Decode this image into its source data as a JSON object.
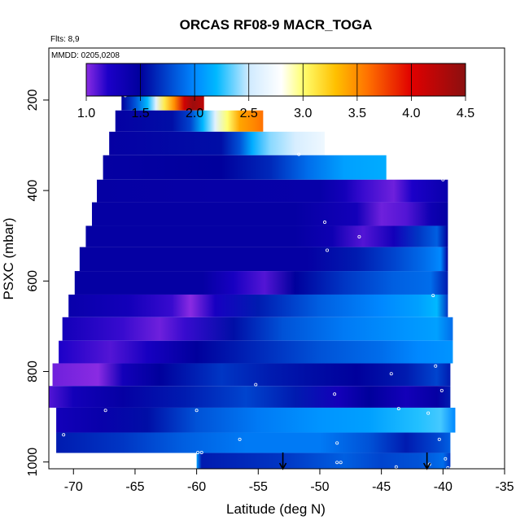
{
  "chart_data": {
    "type": "heatmap",
    "title": "ORCAS RF08-9 MACR_TOGA",
    "flights_label": "Flts: 8,9",
    "dates_label": "MMDD: 0205,0208",
    "xlabel": "Latitude (deg N)",
    "ylabel": "PSXC (mbar)",
    "xlim": [
      -72,
      -35
    ],
    "ylim": [
      1015,
      85
    ],
    "x_ticks": [
      -70,
      -65,
      -60,
      -55,
      -50,
      -45,
      -40,
      -35
    ],
    "y_ticks": [
      200,
      400,
      600,
      800,
      1000
    ],
    "colorbar": {
      "range": [
        1.0,
        4.5
      ],
      "ticks": [
        1.0,
        1.5,
        2.0,
        2.5,
        3.0,
        3.5,
        4.0,
        4.5
      ],
      "tick_labels": [
        "1.0",
        "1.5",
        "2.0",
        "2.5",
        "3.0",
        "3.5",
        "4.0",
        "4.5"
      ],
      "stops": [
        {
          "value": 1.0,
          "color": "#8a2be2"
        },
        {
          "value": 1.2,
          "color": "#1c00c8"
        },
        {
          "value": 1.5,
          "color": "#00009c"
        },
        {
          "value": 2.0,
          "color": "#0088ff"
        },
        {
          "value": 2.2,
          "color": "#00b8ff"
        },
        {
          "value": 2.5,
          "color": "#cfeaff"
        },
        {
          "value": 2.8,
          "color": "#ffffff"
        },
        {
          "value": 3.0,
          "color": "#ffff70"
        },
        {
          "value": 3.3,
          "color": "#ffc000"
        },
        {
          "value": 3.6,
          "color": "#ff7000"
        },
        {
          "value": 4.0,
          "color": "#e00000"
        },
        {
          "value": 4.5,
          "color": "#8b1010"
        }
      ]
    },
    "bands": [
      {
        "p_top": 177,
        "p_bot": 223,
        "lat_start": -66.1,
        "lat_end": -59.4,
        "knots": [
          [
            -66.1,
            1.5
          ],
          [
            -65,
            1.8
          ],
          [
            -64,
            2.2
          ],
          [
            -63.3,
            2.6
          ],
          [
            -62.6,
            3.1
          ],
          [
            -61.8,
            3.5
          ],
          [
            -61.0,
            4.1
          ],
          [
            -60.3,
            4.4
          ],
          [
            -59.4,
            4.2
          ]
        ]
      },
      {
        "p_top": 223,
        "p_bot": 270,
        "lat_start": -66.6,
        "lat_end": -54.6,
        "knots": [
          [
            -66.6,
            1.45
          ],
          [
            -62,
            1.55
          ],
          [
            -60.5,
            1.75
          ],
          [
            -59.5,
            2.2
          ],
          [
            -58.5,
            2.6
          ],
          [
            -57.5,
            3.0
          ],
          [
            -56.5,
            3.4
          ],
          [
            -55.5,
            3.5
          ],
          [
            -54.6,
            3.6
          ]
        ]
      },
      {
        "p_top": 270,
        "p_bot": 322,
        "lat_start": -67.1,
        "lat_end": -49.6,
        "knots": [
          [
            -67.1,
            1.45
          ],
          [
            -58,
            1.55
          ],
          [
            -56.5,
            1.8
          ],
          [
            -55.5,
            2.15
          ],
          [
            -54,
            2.4
          ],
          [
            -52,
            2.55
          ],
          [
            -49.6,
            2.7
          ]
        ]
      },
      {
        "p_top": 322,
        "p_bot": 376,
        "lat_start": -67.6,
        "lat_end": -44.6,
        "knots": [
          [
            -67.6,
            1.45
          ],
          [
            -58,
            1.5
          ],
          [
            -54,
            1.65
          ],
          [
            -51,
            1.9
          ],
          [
            -48,
            2.1
          ],
          [
            -44.6,
            2.15
          ]
        ]
      },
      {
        "p_top": 376,
        "p_bot": 426,
        "lat_start": -68.1,
        "lat_end": -39.6,
        "knots": [
          [
            -68.1,
            1.45
          ],
          [
            -50,
            1.42
          ],
          [
            -48,
            1.3
          ],
          [
            -46.5,
            1.15
          ],
          [
            -44,
            1.05
          ],
          [
            -42.5,
            1.2
          ],
          [
            -39.6,
            1.4
          ]
        ]
      },
      {
        "p_top": 426,
        "p_bot": 478,
        "lat_start": -68.5,
        "lat_end": -39.6,
        "knots": [
          [
            -68.5,
            1.45
          ],
          [
            -52,
            1.45
          ],
          [
            -47,
            1.3
          ],
          [
            -45,
            1.05
          ],
          [
            -43,
            1.1
          ],
          [
            -41,
            1.35
          ],
          [
            -39.6,
            1.45
          ]
        ]
      },
      {
        "p_top": 478,
        "p_bot": 525,
        "lat_start": -69.0,
        "lat_end": -39.6,
        "knots": [
          [
            -69.0,
            1.45
          ],
          [
            -52,
            1.45
          ],
          [
            -49,
            1.35
          ],
          [
            -46.5,
            1.1
          ],
          [
            -44,
            1.3
          ],
          [
            -42,
            1.7
          ],
          [
            -40.5,
            1.85
          ],
          [
            -39.6,
            1.5
          ]
        ]
      },
      {
        "p_top": 525,
        "p_bot": 578,
        "lat_start": -69.5,
        "lat_end": -39.6,
        "knots": [
          [
            -69.5,
            1.45
          ],
          [
            -51,
            1.45
          ],
          [
            -47,
            1.6
          ],
          [
            -44,
            1.75
          ],
          [
            -41.5,
            1.9
          ],
          [
            -40.2,
            2.0
          ],
          [
            -39.6,
            1.5
          ]
        ]
      },
      {
        "p_top": 578,
        "p_bot": 630,
        "lat_start": -69.9,
        "lat_end": -39.6,
        "knots": [
          [
            -69.9,
            1.45
          ],
          [
            -59.5,
            1.45
          ],
          [
            -57,
            1.25
          ],
          [
            -54.5,
            1.1
          ],
          [
            -52,
            1.5
          ],
          [
            -48,
            1.7
          ],
          [
            -44,
            1.85
          ],
          [
            -41,
            1.9
          ],
          [
            -39.6,
            1.6
          ]
        ]
      },
      {
        "p_top": 630,
        "p_bot": 680,
        "lat_start": -70.4,
        "lat_end": -39.6,
        "knots": [
          [
            -70.4,
            1.4
          ],
          [
            -65.5,
            1.3
          ],
          [
            -62,
            1.15
          ],
          [
            -60.5,
            1.0
          ],
          [
            -58.5,
            1.25
          ],
          [
            -55,
            1.6
          ],
          [
            -50,
            1.85
          ],
          [
            -45,
            2.0
          ],
          [
            -42,
            2.1
          ],
          [
            -40.5,
            2.2
          ],
          [
            -39.6,
            1.7
          ]
        ]
      },
      {
        "p_top": 680,
        "p_bot": 732,
        "lat_start": -70.9,
        "lat_end": -39.2,
        "knots": [
          [
            -70.9,
            1.3
          ],
          [
            -66,
            1.15
          ],
          [
            -63,
            1.05
          ],
          [
            -61,
            1.15
          ],
          [
            -57,
            1.55
          ],
          [
            -53,
            1.8
          ],
          [
            -48,
            1.95
          ],
          [
            -43,
            2.05
          ],
          [
            -40.5,
            2.1
          ],
          [
            -39.2,
            1.9
          ]
        ]
      },
      {
        "p_top": 732,
        "p_bot": 782,
        "lat_start": -71.2,
        "lat_end": -39.2,
        "knots": [
          [
            -71.2,
            1.2
          ],
          [
            -67,
            1.1
          ],
          [
            -64,
            1.25
          ],
          [
            -60,
            1.5
          ],
          [
            -55,
            1.65
          ],
          [
            -50,
            1.8
          ],
          [
            -45,
            1.9
          ],
          [
            -42,
            2.0
          ],
          [
            -39.2,
            2.05
          ]
        ]
      },
      {
        "p_top": 782,
        "p_bot": 832,
        "lat_start": -71.7,
        "lat_end": -39.4,
        "knots": [
          [
            -71.7,
            1.05
          ],
          [
            -68,
            1.0
          ],
          [
            -66,
            1.3
          ],
          [
            -63,
            1.5
          ],
          [
            -58,
            1.7
          ],
          [
            -54,
            1.6
          ],
          [
            -51,
            1.55
          ],
          [
            -47,
            1.5
          ],
          [
            -43,
            1.6
          ],
          [
            -40.5,
            1.75
          ],
          [
            -39.4,
            1.6
          ]
        ]
      },
      {
        "p_top": 832,
        "p_bot": 880,
        "lat_start": -72.0,
        "lat_end": -39.4,
        "knots": [
          [
            -72.0,
            1.1
          ],
          [
            -70,
            1.3
          ],
          [
            -66,
            1.45
          ],
          [
            -61,
            1.6
          ],
          [
            -56,
            1.75
          ],
          [
            -52,
            1.6
          ],
          [
            -48.5,
            1.3
          ],
          [
            -46,
            1.5
          ],
          [
            -43,
            1.3
          ],
          [
            -40.5,
            1.45
          ],
          [
            -39.4,
            1.6
          ]
        ]
      },
      {
        "p_top": 880,
        "p_bot": 935,
        "lat_start": -71.4,
        "lat_end": -39.0,
        "knots": [
          [
            -71.4,
            1.3
          ],
          [
            -68,
            1.4
          ],
          [
            -64,
            1.55
          ],
          [
            -60,
            1.8
          ],
          [
            -55,
            1.95
          ],
          [
            -50,
            2.05
          ],
          [
            -46,
            2.1
          ],
          [
            -42,
            2.25
          ],
          [
            -40.2,
            2.3
          ],
          [
            -39.0,
            2.0
          ]
        ]
      },
      {
        "p_top": 935,
        "p_bot": 980,
        "lat_start": -71.4,
        "lat_end": -39.4,
        "knots": [
          [
            -71.4,
            1.6
          ],
          [
            -66,
            1.7
          ],
          [
            -61,
            1.85
          ],
          [
            -56,
            1.95
          ],
          [
            -50,
            1.95
          ],
          [
            -46,
            1.8
          ],
          [
            -43,
            1.6
          ],
          [
            -40.5,
            1.75
          ],
          [
            -39.4,
            1.85
          ]
        ]
      },
      {
        "p_top": 980,
        "p_bot": 1015,
        "lat_start": -60.0,
        "lat_end": -39.4,
        "knots": [
          [
            -60.0,
            2.1
          ],
          [
            -59.6,
            1.6
          ],
          [
            -53,
            1.7
          ],
          [
            -48,
            1.85
          ],
          [
            -45,
            1.75
          ],
          [
            -42,
            1.8
          ],
          [
            -40,
            1.9
          ],
          [
            -39.4,
            1.7
          ]
        ]
      }
    ],
    "sample_points": [
      [
        -65.8,
        190
      ],
      [
        -51.7,
        320
      ],
      [
        -44.2,
        366
      ],
      [
        -40.0,
        376
      ],
      [
        -49.6,
        470
      ],
      [
        -46.8,
        502
      ],
      [
        -49.4,
        532
      ],
      [
        -40.8,
        632
      ],
      [
        -44.2,
        805
      ],
      [
        -40.6,
        788
      ],
      [
        -55.2,
        829
      ],
      [
        -48.8,
        850
      ],
      [
        -40.1,
        842
      ],
      [
        -43.6,
        882
      ],
      [
        -41.2,
        892
      ],
      [
        -67.4,
        886
      ],
      [
        -60.0,
        886
      ],
      [
        -70.8,
        940
      ],
      [
        -56.5,
        950
      ],
      [
        -48.6,
        958
      ],
      [
        -40.3,
        950
      ],
      [
        -59.9,
        979
      ],
      [
        -59.6,
        979
      ],
      [
        -48.6,
        1001
      ],
      [
        -48.3,
        1001
      ],
      [
        -43.8,
        1011
      ],
      [
        -41.1,
        1005
      ],
      [
        -39.8,
        993
      ],
      [
        -39.6,
        1013
      ],
      [
        -39.3,
        1013
      ]
    ],
    "arrows": [
      {
        "lat": -53.0
      },
      {
        "lat": -41.3
      }
    ]
  }
}
